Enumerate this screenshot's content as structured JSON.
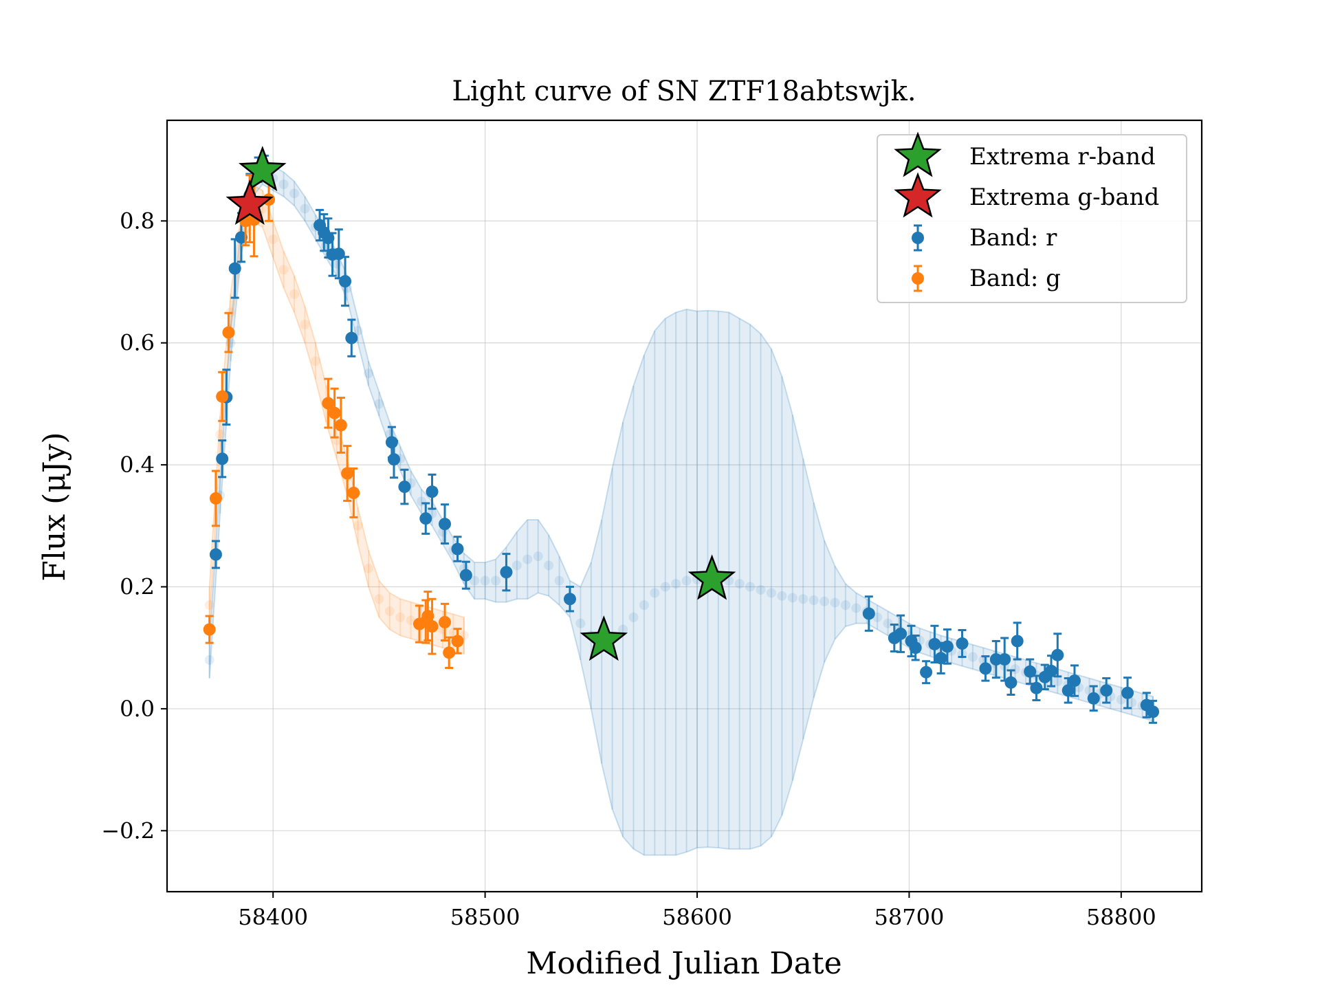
{
  "chart_data": {
    "type": "scatter",
    "title": "Light curve of SN ZTF18abtswjk.",
    "xlabel": "Modified Julian Date",
    "ylabel": "Flux (μJy)",
    "xlim": [
      58350,
      58838
    ],
    "ylim": [
      -0.3,
      0.965
    ],
    "xticks": [
      58400,
      58500,
      58600,
      58700,
      58800
    ],
    "yticks": [
      -0.2,
      0.0,
      0.2,
      0.4,
      0.6,
      0.8
    ],
    "xtick_labels": [
      "58400",
      "58500",
      "58600",
      "58700",
      "58800"
    ],
    "ytick_labels": [
      "−0.2",
      "0.0",
      "0.2",
      "0.4",
      "0.6",
      "0.8"
    ],
    "grid": true,
    "legend_position": "top-right",
    "legend": [
      {
        "label": "Extrema r-band",
        "marker": "star",
        "color": "#2ca02c"
      },
      {
        "label": "Extrema g-band",
        "marker": "star",
        "color": "#d62728"
      },
      {
        "label": "Band: r",
        "marker": "errorbar",
        "color": "#1f77b4"
      },
      {
        "label": "Band: g",
        "marker": "errorbar",
        "color": "#ff7f0e"
      }
    ],
    "series": [
      {
        "name": "Band: r",
        "color": "#1f77b4",
        "x": [
          58373,
          58376,
          58378,
          58382,
          58385,
          58389,
          58393,
          58396,
          58422,
          58424,
          58426,
          58428,
          58431,
          58434,
          58437,
          58456,
          58457,
          58462,
          58472,
          58475,
          58481,
          58487,
          58491,
          58510,
          58540,
          58681,
          58693,
          58696,
          58701,
          58703,
          58708,
          58712,
          58715,
          58718,
          58725,
          58736,
          58741,
          58745,
          58748,
          58751,
          58757,
          58760,
          58764,
          58767,
          58770,
          58775,
          58778,
          58787,
          58793,
          58803,
          58812,
          58815
        ],
        "y": [
          0.253,
          0.41,
          0.511,
          0.722,
          0.773,
          0.842,
          0.884,
          0.889,
          0.793,
          0.781,
          0.772,
          0.745,
          0.746,
          0.701,
          0.608,
          0.437,
          0.409,
          0.364,
          0.312,
          0.356,
          0.303,
          0.262,
          0.219,
          0.224,
          0.18,
          0.156,
          0.116,
          0.123,
          0.111,
          0.1,
          0.06,
          0.106,
          0.083,
          0.102,
          0.107,
          0.066,
          0.081,
          0.081,
          0.043,
          0.111,
          0.061,
          0.034,
          0.052,
          0.062,
          0.088,
          0.03,
          0.046,
          0.017,
          0.03,
          0.026,
          0.006,
          -0.005
        ],
        "yerr": [
          0.022,
          0.03,
          0.045,
          0.048,
          0.04,
          0.035,
          0.02,
          0.018,
          0.025,
          0.03,
          0.032,
          0.035,
          0.04,
          0.04,
          0.03,
          0.025,
          0.03,
          0.028,
          0.025,
          0.028,
          0.032,
          0.02,
          0.022,
          0.03,
          0.02,
          0.028,
          0.022,
          0.03,
          0.025,
          0.02,
          0.018,
          0.03,
          0.025,
          0.028,
          0.022,
          0.02,
          0.03,
          0.035,
          0.02,
          0.03,
          0.02,
          0.02,
          0.02,
          0.025,
          0.035,
          0.02,
          0.025,
          0.02,
          0.02,
          0.025,
          0.02,
          0.018
        ]
      },
      {
        "name": "Band: g",
        "color": "#ff7f0e",
        "x": [
          58370,
          58373,
          58376,
          58379,
          58387,
          58389,
          58391,
          58398,
          58426,
          58429,
          58432,
          58435,
          58438,
          58469,
          58472,
          58473,
          58475,
          58481,
          58483,
          58487
        ],
        "y": [
          0.13,
          0.345,
          0.512,
          0.617,
          0.8,
          0.82,
          0.802,
          0.835,
          0.501,
          0.485,
          0.465,
          0.386,
          0.354,
          0.139,
          0.143,
          0.152,
          0.135,
          0.142,
          0.092,
          0.111
        ],
        "yerr": [
          0.022,
          0.045,
          0.04,
          0.032,
          0.04,
          0.055,
          0.06,
          0.035,
          0.04,
          0.04,
          0.045,
          0.045,
          0.04,
          0.03,
          0.035,
          0.04,
          0.045,
          0.03,
          0.025,
          0.02
        ]
      }
    ],
    "fits": [
      {
        "name": "r-band fit",
        "color": "#1f77b4",
        "x": [
          58370,
          58375,
          58380,
          58385,
          58390,
          58395,
          58400,
          58405,
          58410,
          58415,
          58420,
          58425,
          58430,
          58435,
          58440,
          58445,
          58450,
          58455,
          58460,
          58465,
          58470,
          58475,
          58480,
          58485,
          58490,
          58495,
          58500,
          58505,
          58510,
          58515,
          58520,
          58525,
          58530,
          58535,
          58540,
          58545,
          58550,
          58555,
          58560,
          58565,
          58570,
          58575,
          58580,
          58585,
          58590,
          58595,
          58600,
          58605,
          58610,
          58615,
          58620,
          58625,
          58630,
          58635,
          58640,
          58645,
          58650,
          58655,
          58660,
          58665,
          58670,
          58675,
          58680,
          58685,
          58690,
          58695,
          58700,
          58705,
          58710,
          58715,
          58720,
          58725,
          58730,
          58735,
          58740,
          58745,
          58750,
          58755,
          58760,
          58765,
          58770,
          58775,
          58780,
          58785,
          58790,
          58795,
          58800,
          58805,
          58810,
          58815
        ],
        "y": [
          0.08,
          0.35,
          0.6,
          0.77,
          0.86,
          0.88,
          0.87,
          0.86,
          0.845,
          0.82,
          0.79,
          0.76,
          0.73,
          0.69,
          0.62,
          0.55,
          0.5,
          0.45,
          0.41,
          0.37,
          0.34,
          0.32,
          0.29,
          0.26,
          0.23,
          0.21,
          0.21,
          0.21,
          0.22,
          0.235,
          0.245,
          0.25,
          0.235,
          0.21,
          0.18,
          0.14,
          0.12,
          0.11,
          0.115,
          0.13,
          0.15,
          0.17,
          0.19,
          0.2,
          0.205,
          0.21,
          0.212,
          0.213,
          0.212,
          0.21,
          0.205,
          0.2,
          0.195,
          0.19,
          0.185,
          0.182,
          0.18,
          0.178,
          0.176,
          0.174,
          0.17,
          0.165,
          0.16,
          0.15,
          0.14,
          0.13,
          0.12,
          0.112,
          0.106,
          0.1,
          0.095,
          0.09,
          0.085,
          0.08,
          0.075,
          0.07,
          0.065,
          0.06,
          0.055,
          0.05,
          0.045,
          0.04,
          0.035,
          0.03,
          0.025,
          0.02,
          0.015,
          0.01,
          0.005,
          0.0
        ],
        "err": [
          0.03,
          0.03,
          0.03,
          0.025,
          0.022,
          0.02,
          0.02,
          0.02,
          0.02,
          0.02,
          0.02,
          0.02,
          0.02,
          0.02,
          0.02,
          0.02,
          0.02,
          0.02,
          0.02,
          0.02,
          0.02,
          0.02,
          0.02,
          0.02,
          0.025,
          0.03,
          0.03,
          0.035,
          0.045,
          0.055,
          0.065,
          0.06,
          0.05,
          0.04,
          0.03,
          0.06,
          0.12,
          0.2,
          0.28,
          0.34,
          0.38,
          0.41,
          0.43,
          0.44,
          0.445,
          0.445,
          0.44,
          0.44,
          0.44,
          0.44,
          0.435,
          0.43,
          0.42,
          0.4,
          0.36,
          0.3,
          0.23,
          0.16,
          0.1,
          0.06,
          0.035,
          0.025,
          0.02,
          0.02,
          0.02,
          0.02,
          0.02,
          0.02,
          0.02,
          0.02,
          0.02,
          0.02,
          0.02,
          0.02,
          0.02,
          0.02,
          0.02,
          0.02,
          0.02,
          0.02,
          0.02,
          0.02,
          0.02,
          0.02,
          0.02,
          0.02,
          0.02,
          0.02,
          0.02,
          0.02
        ]
      },
      {
        "name": "g-band fit",
        "color": "#ff7f0e",
        "x": [
          58370,
          58375,
          58380,
          58385,
          58390,
          58395,
          58400,
          58405,
          58410,
          58415,
          58420,
          58425,
          58430,
          58435,
          58440,
          58445,
          58450,
          58455,
          58460,
          58465,
          58470,
          58475,
          58480,
          58485,
          58490
        ],
        "y": [
          0.17,
          0.45,
          0.65,
          0.78,
          0.83,
          0.82,
          0.77,
          0.72,
          0.68,
          0.63,
          0.57,
          0.5,
          0.44,
          0.38,
          0.3,
          0.23,
          0.18,
          0.16,
          0.15,
          0.145,
          0.14,
          0.135,
          0.13,
          0.125,
          0.12
        ],
        "err": [
          0.03,
          0.03,
          0.03,
          0.03,
          0.03,
          0.03,
          0.03,
          0.03,
          0.03,
          0.03,
          0.03,
          0.03,
          0.03,
          0.03,
          0.03,
          0.03,
          0.03,
          0.03,
          0.03,
          0.03,
          0.03,
          0.03,
          0.03,
          0.03,
          0.03
        ]
      }
    ],
    "extrema": [
      {
        "band": "r",
        "x": 58395,
        "y": 0.882,
        "color": "#2ca02c"
      },
      {
        "band": "r",
        "x": 58556,
        "y": 0.112,
        "color": "#2ca02c"
      },
      {
        "band": "r",
        "x": 58607,
        "y": 0.212,
        "color": "#2ca02c"
      },
      {
        "band": "g",
        "x": 58389,
        "y": 0.827,
        "color": "#d62728"
      }
    ]
  }
}
